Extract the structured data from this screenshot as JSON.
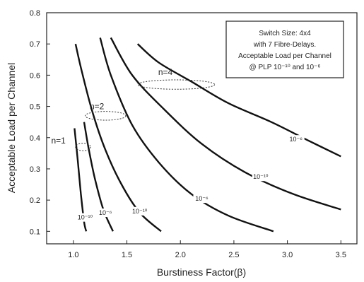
{
  "chart_data": {
    "type": "line",
    "xlabel": "Burstiness Factor(β)",
    "ylabel": "Acceptable Load per Channel",
    "xlim": [
      0.75,
      3.65
    ],
    "ylim": [
      0.06,
      0.8
    ],
    "x_ticks": [
      1.0,
      1.5,
      2.0,
      2.5,
      3.0,
      3.5
    ],
    "x_tick_labels": [
      "1.0",
      "1.5",
      "2.0",
      "2.5",
      "3.0",
      "3.5"
    ],
    "y_ticks": [
      0.1,
      0.2,
      0.3,
      0.4,
      0.5,
      0.6,
      0.7,
      0.8
    ],
    "y_tick_labels": [
      "0.1",
      "0.2",
      "0.3",
      "0.4",
      "0.5",
      "0.6",
      "0.7",
      "0.8"
    ],
    "legend_box": {
      "lines": [
        "Switch Size: 4x4",
        "with 7 Fibre-Delays.",
        "Acceptable Load per Channel",
        "@ PLP 10⁻¹⁰ and 10⁻⁶"
      ],
      "placement": "top-right"
    },
    "series": [
      {
        "label": "10⁻¹⁰",
        "values": [
          [
            1.01,
            0.43
          ],
          [
            1.04,
            0.33
          ],
          [
            1.07,
            0.22
          ],
          [
            1.1,
            0.13
          ],
          [
            1.12,
            0.1
          ]
        ],
        "label_at": [
          1.11,
          0.14
        ]
      },
      {
        "label": "10⁻⁶",
        "values": [
          [
            1.1,
            0.45
          ],
          [
            1.14,
            0.37
          ],
          [
            1.2,
            0.27
          ],
          [
            1.28,
            0.17
          ],
          [
            1.37,
            0.1
          ]
        ],
        "label_at": [
          1.3,
          0.155
        ]
      },
      {
        "label": "10⁻¹⁰",
        "values": [
          [
            1.02,
            0.7
          ],
          [
            1.08,
            0.61
          ],
          [
            1.18,
            0.48
          ],
          [
            1.3,
            0.36
          ],
          [
            1.45,
            0.25
          ],
          [
            1.62,
            0.16
          ],
          [
            1.82,
            0.1
          ]
        ],
        "label_at": [
          1.62,
          0.16
        ]
      },
      {
        "label": "10⁻⁶",
        "values": [
          [
            1.25,
            0.72
          ],
          [
            1.35,
            0.6
          ],
          [
            1.55,
            0.44
          ],
          [
            1.8,
            0.32
          ],
          [
            2.1,
            0.22
          ],
          [
            2.45,
            0.15
          ],
          [
            2.87,
            0.1
          ]
        ],
        "label_at": [
          2.2,
          0.2
        ]
      },
      {
        "label": "10⁻¹⁰",
        "values": [
          [
            1.35,
            0.72
          ],
          [
            1.55,
            0.6
          ],
          [
            1.85,
            0.49
          ],
          [
            2.2,
            0.38
          ],
          [
            2.6,
            0.29
          ],
          [
            3.05,
            0.22
          ],
          [
            3.5,
            0.17
          ]
        ],
        "label_at": [
          2.75,
          0.27
        ]
      },
      {
        "label": "10⁻⁶",
        "values": [
          [
            1.6,
            0.7
          ],
          [
            1.8,
            0.64
          ],
          [
            2.1,
            0.58
          ],
          [
            2.45,
            0.51
          ],
          [
            2.85,
            0.45
          ],
          [
            3.2,
            0.39
          ],
          [
            3.5,
            0.34
          ]
        ],
        "label_at": [
          3.08,
          0.39
        ]
      }
    ],
    "groups": [
      {
        "label": "n=1",
        "center": [
          1.09,
          0.37
        ],
        "radius": [
          0.07,
          0.012
        ],
        "label_at": [
          0.86,
          0.39
        ]
      },
      {
        "label": "n=2",
        "center": [
          1.3,
          0.47
        ],
        "radius": [
          0.19,
          0.014
        ],
        "label_at": [
          1.22,
          0.5
        ]
      },
      {
        "label": "n=4",
        "center": [
          1.96,
          0.57
        ],
        "radius": [
          0.36,
          0.015
        ],
        "label_at": [
          1.86,
          0.61
        ]
      }
    ]
  }
}
